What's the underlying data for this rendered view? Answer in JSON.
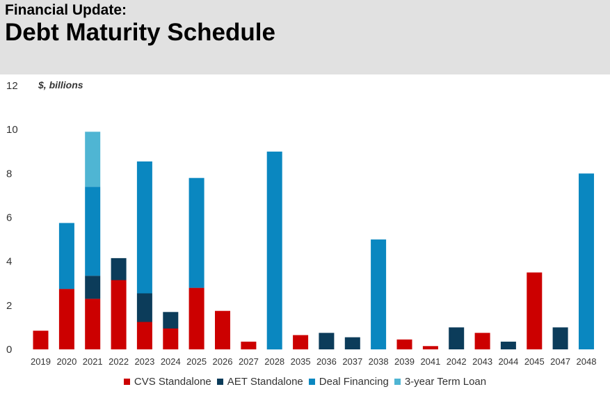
{
  "header": {
    "subtitle": "Financial Update:",
    "title": "Debt Maturity Schedule"
  },
  "chart_data": {
    "type": "bar",
    "stacked": true,
    "unit_label": "$, billions",
    "ylim": [
      0,
      12
    ],
    "yticks": [
      "0",
      "2",
      "4",
      "6",
      "8",
      "10",
      "12"
    ],
    "grid": false,
    "legend_position": "bottom",
    "categories": [
      "2019",
      "2020",
      "2021",
      "2022",
      "2023",
      "2024",
      "2025",
      "2026",
      "2027",
      "2028",
      "2035",
      "2036",
      "2037",
      "2038",
      "2039",
      "2041",
      "2042",
      "2043",
      "2044",
      "2045",
      "2047",
      "2048"
    ],
    "series": [
      {
        "name": "CVS Standalone",
        "color": "#cc0000",
        "values": [
          0.85,
          2.75,
          2.3,
          3.15,
          1.25,
          0.95,
          2.8,
          1.75,
          0.35,
          0,
          0.65,
          0,
          0,
          0,
          0.45,
          0.15,
          0,
          0.75,
          0,
          3.5,
          0,
          0
        ]
      },
      {
        "name": "AET Standalone",
        "color": "#0c3c5a",
        "values": [
          0,
          0,
          1.05,
          1.0,
          1.3,
          0.75,
          0,
          0,
          0,
          0,
          0,
          0.75,
          0.55,
          0,
          0,
          0,
          1.0,
          0,
          0.35,
          0,
          1.0,
          0
        ]
      },
      {
        "name": "Deal Financing",
        "color": "#0a87c0",
        "values": [
          0,
          3.0,
          4.05,
          0,
          6.0,
          0,
          5.0,
          0,
          0,
          9.0,
          0,
          0,
          0,
          5.0,
          0,
          0,
          0,
          0,
          0,
          0,
          0,
          8.0
        ]
      },
      {
        "name": "3-year Term Loan",
        "color": "#4fb5d3",
        "values": [
          0,
          0,
          2.5,
          0,
          0,
          0,
          0,
          0,
          0,
          0,
          0,
          0,
          0,
          0,
          0,
          0,
          0,
          0,
          0,
          0,
          0,
          0
        ]
      }
    ]
  }
}
